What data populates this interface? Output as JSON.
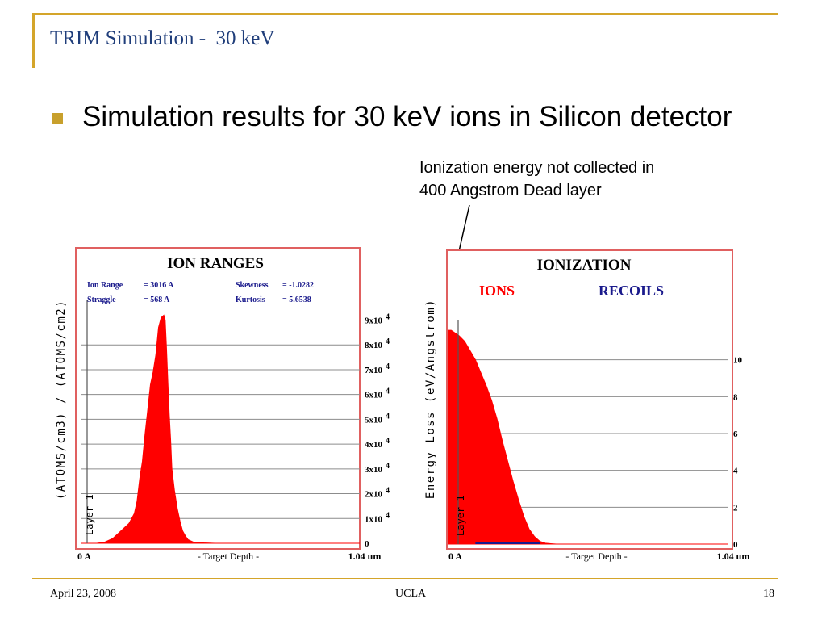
{
  "slide": {
    "title": "TRIM Simulation -  30 keV",
    "bullet": "Simulation results for 30 keV ions in Silicon detector",
    "annotation_line1": "Ionization energy not collected in",
    "annotation_line2": "400 Angstrom Dead layer"
  },
  "footer": {
    "date": "April 23, 2008",
    "org": "UCLA",
    "page": "18"
  },
  "colors": {
    "accent": "#d4a52a",
    "title": "#1f3d7a",
    "fill": "#ff0000",
    "border": "#e06060",
    "navy": "#1a1a8c"
  },
  "chart_data": [
    {
      "type": "area",
      "title": "ION RANGES",
      "stats": [
        {
          "label": "Ion Range",
          "value": "=  3016 A"
        },
        {
          "label": "Straggle",
          "value": "=   568 A"
        },
        {
          "label": "Skewness",
          "value": "= -1.0282"
        },
        {
          "label": "Kurtosis",
          "value": "= 5.6538"
        }
      ],
      "ylabel": "(ATOMS/cm3) / (ATOMS/cm2)",
      "xlabel": "- Target Depth -",
      "x_start_label": "0 A",
      "x_end_label": "1.04 um",
      "layer_label": "Layer 1",
      "y_ticks": [
        {
          "value": 0,
          "label": "0"
        },
        {
          "value": 1,
          "label": "1x10",
          "exp": "4"
        },
        {
          "value": 2,
          "label": "2x10",
          "exp": "4"
        },
        {
          "value": 3,
          "label": "3x10",
          "exp": "4"
        },
        {
          "value": 4,
          "label": "4x10",
          "exp": "4"
        },
        {
          "value": 5,
          "label": "5x10",
          "exp": "4"
        },
        {
          "value": 6,
          "label": "6x10",
          "exp": "4"
        },
        {
          "value": 7,
          "label": "7x10",
          "exp": "4"
        },
        {
          "value": 8,
          "label": "8x10",
          "exp": "4"
        },
        {
          "value": 9,
          "label": "9x10",
          "exp": "4"
        }
      ],
      "ylim": [
        0,
        9.7
      ],
      "xlim": [
        0,
        1.04
      ],
      "x": [
        0,
        0.03,
        0.06,
        0.09,
        0.1,
        0.12,
        0.14,
        0.16,
        0.18,
        0.19,
        0.2,
        0.21,
        0.22,
        0.23,
        0.24,
        0.25,
        0.26,
        0.27,
        0.28,
        0.29,
        0.3,
        0.31,
        0.315,
        0.32,
        0.325,
        0.33,
        0.335,
        0.34,
        0.35,
        0.36,
        0.37,
        0.38,
        0.39,
        0.4,
        0.41,
        0.42,
        0.45,
        0.5,
        1.04
      ],
      "values": [
        0,
        0,
        0,
        0.05,
        0.1,
        0.2,
        0.4,
        0.6,
        0.8,
        1.0,
        1.2,
        1.7,
        2.6,
        3.3,
        4.4,
        5.4,
        6.4,
        6.9,
        7.6,
        8.7,
        9.1,
        9.2,
        9.0,
        7.8,
        6.5,
        5.2,
        4.2,
        3.0,
        2.1,
        1.4,
        0.9,
        0.5,
        0.3,
        0.15,
        0.1,
        0.05,
        0.02,
        0,
        0
      ]
    },
    {
      "type": "area",
      "title": "IONIZATION",
      "legend": [
        {
          "name": "IONS",
          "color": "#ff0000"
        },
        {
          "name": "RECOILS",
          "color": "#1a1a8c"
        }
      ],
      "ylabel": "Energy Loss (eV/Angstrom)",
      "xlabel": "- Target Depth -",
      "x_start_label": "0 A",
      "x_end_label": "1.04 um",
      "layer_label": "Layer 1",
      "y_ticks": [
        {
          "value": 0,
          "label": "0"
        },
        {
          "value": 2,
          "label": "2"
        },
        {
          "value": 4,
          "label": "4"
        },
        {
          "value": 6,
          "label": "6"
        },
        {
          "value": 8,
          "label": "8"
        },
        {
          "value": 10,
          "label": "10"
        }
      ],
      "ylim": [
        0,
        12
      ],
      "xlim": [
        0,
        1.04
      ],
      "x": [
        0,
        0.01,
        0.02,
        0.04,
        0.06,
        0.08,
        0.1,
        0.12,
        0.14,
        0.16,
        0.18,
        0.2,
        0.22,
        0.24,
        0.26,
        0.28,
        0.3,
        0.32,
        0.34,
        0.36,
        0.38,
        0.4,
        1.04
      ],
      "values": [
        11.6,
        11.6,
        11.5,
        11.3,
        11.0,
        10.5,
        10.0,
        9.3,
        8.6,
        7.8,
        6.8,
        5.6,
        4.5,
        3.4,
        2.4,
        1.5,
        0.8,
        0.4,
        0.15,
        0.05,
        0.02,
        0,
        0
      ]
    }
  ]
}
